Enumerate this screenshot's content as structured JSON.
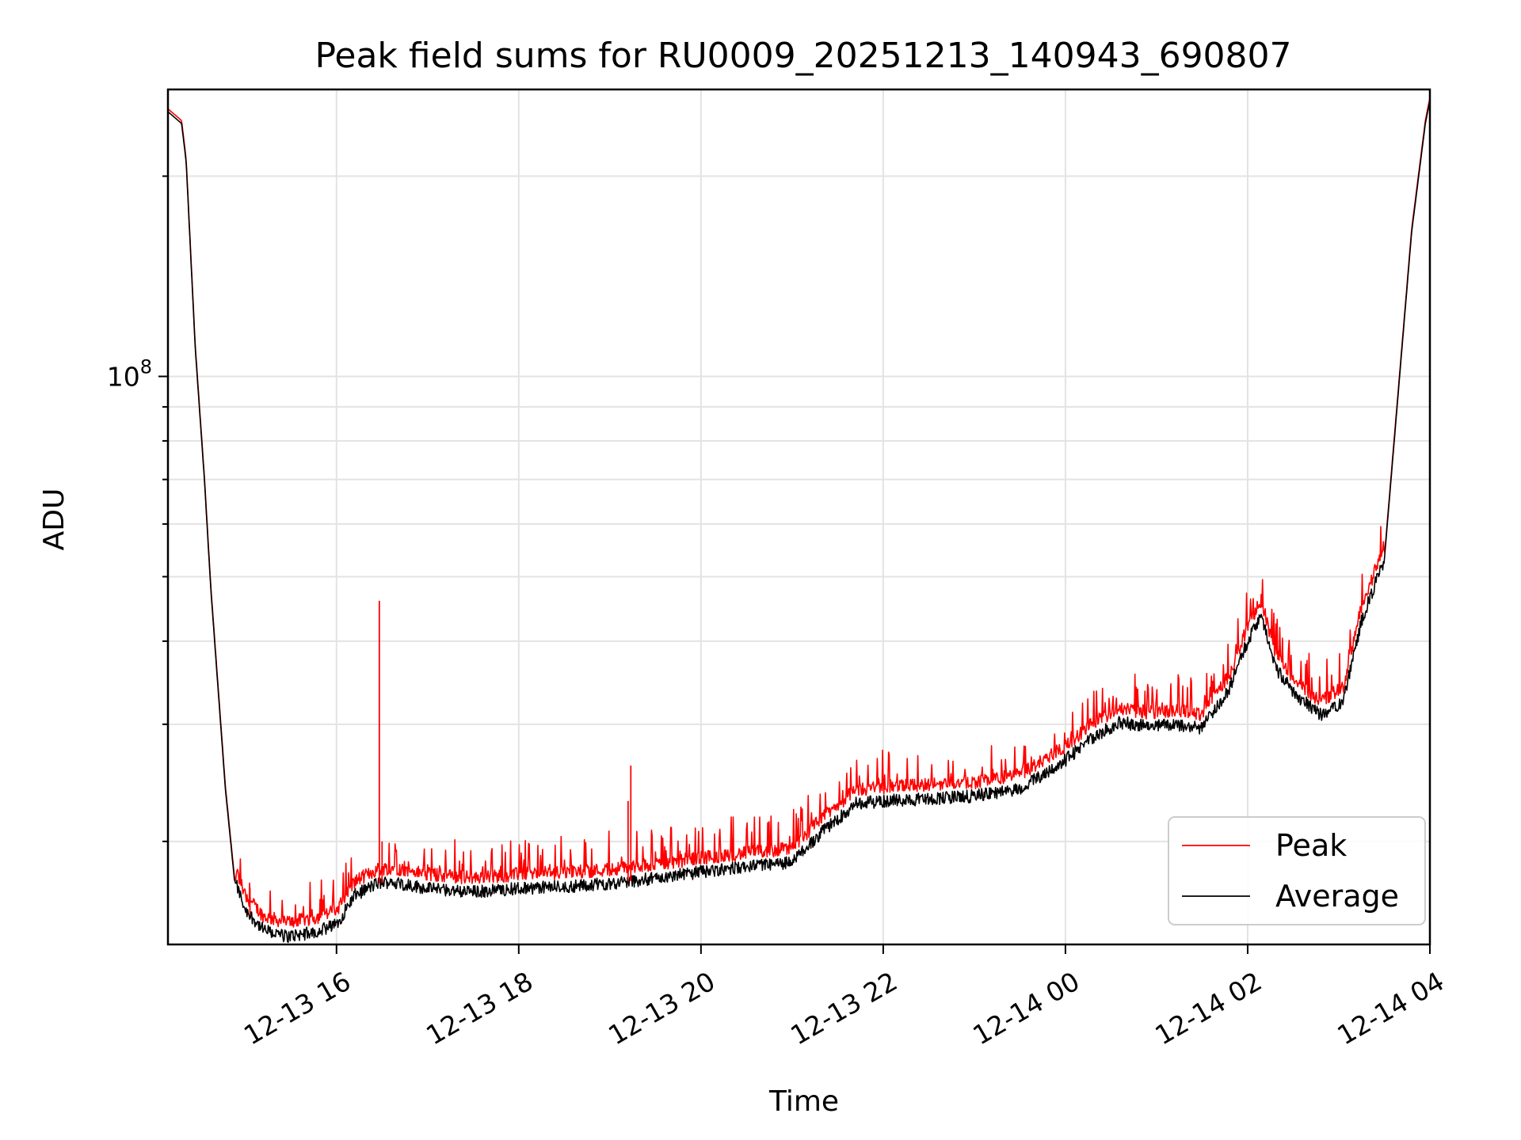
{
  "chart_data": {
    "type": "line",
    "title": "Peak field sums for RU0009_20251213_140943_690807",
    "xlabel": "Time",
    "ylabel": "ADU",
    "y_scale": "log",
    "ylim": [
      14000000,
      270000000
    ],
    "xlim_hours": [
      14.15,
      28.0
    ],
    "x_ticks": [
      {
        "hour": 16,
        "label": "12-13 16"
      },
      {
        "hour": 18,
        "label": "12-13 18"
      },
      {
        "hour": 20,
        "label": "12-13 20"
      },
      {
        "hour": 22,
        "label": "12-13 22"
      },
      {
        "hour": 24,
        "label": "12-14 00"
      },
      {
        "hour": 26,
        "label": "12-14 02"
      },
      {
        "hour": 28,
        "label": "12-14 04"
      }
    ],
    "y_major_ticks": [
      {
        "value": 100000000,
        "label": "10",
        "exponent": "8"
      }
    ],
    "y_minor_ticks": [
      20000000,
      30000000,
      40000000,
      50000000,
      60000000,
      70000000,
      80000000,
      90000000,
      200000000
    ],
    "grid": true,
    "legend": {
      "position": "bottom-right"
    },
    "series": [
      {
        "name": "Peak",
        "color": "#ff0000"
      },
      {
        "name": "Average",
        "color": "#000000"
      }
    ],
    "average_x": [
      14.15,
      14.3,
      14.35,
      14.45,
      14.55,
      14.62,
      14.68,
      14.78,
      14.88,
      15.0,
      15.2,
      15.45,
      15.75,
      16.0,
      16.2,
      16.45,
      16.6,
      17.0,
      17.5,
      18.0,
      18.5,
      19.0,
      19.5,
      20.0,
      20.5,
      21.0,
      21.3,
      21.7,
      22.0,
      22.5,
      23.0,
      23.5,
      24.0,
      24.3,
      24.6,
      24.9,
      25.2,
      25.5,
      25.8,
      26.0,
      26.15,
      26.3,
      26.55,
      26.8,
      27.05,
      27.25,
      27.5,
      27.8,
      27.95,
      28.0
    ],
    "average_y": [
      250000000,
      240000000,
      210000000,
      110000000,
      70000000,
      48000000,
      37000000,
      24000000,
      17500000,
      15800000,
      14700000,
      14400000,
      14600000,
      15000000,
      16600000,
      17300000,
      17400000,
      17000000,
      16800000,
      17000000,
      17100000,
      17300000,
      17600000,
      18000000,
      18300000,
      18600000,
      20500000,
      22800000,
      23000000,
      23200000,
      23400000,
      24000000,
      26500000,
      28700000,
      30200000,
      29800000,
      30000000,
      29600000,
      34000000,
      40000000,
      44000000,
      36500000,
      33000000,
      31000000,
      32500000,
      43000000,
      53000000,
      165000000,
      240000000,
      260000000
    ],
    "peak_spikes": [
      {
        "hour": 16.47,
        "value": 46000000
      },
      {
        "hour": 19.23,
        "value": 26000000
      },
      {
        "hour": 19.2,
        "value": 23000000
      },
      {
        "hour": 15.05,
        "value": 17000000
      },
      {
        "hour": 16.5,
        "value": 20000000
      }
    ]
  }
}
